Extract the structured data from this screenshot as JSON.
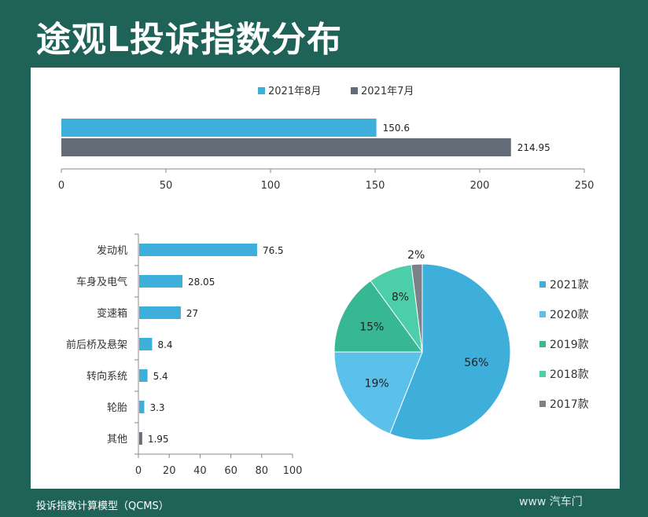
{
  "page": {
    "title": "途观L投诉指数分布",
    "footer": "投诉指数计算模型（QCMS）",
    "watermark": "www 汽车门"
  },
  "chart_data": [
    {
      "type": "bar",
      "orientation": "horizontal",
      "series": [
        {
          "name": "2021年8月",
          "values": [
            150.6
          ],
          "color": "#3eaedb"
        },
        {
          "name": "2021年7月",
          "values": [
            214.95
          ],
          "color": "#646c78"
        }
      ],
      "value_labels": [
        "150.6",
        "214.95"
      ],
      "xlim": [
        0,
        250
      ],
      "ticks": [
        0,
        50,
        100,
        150,
        200,
        250
      ],
      "legend": "top-center"
    },
    {
      "type": "bar",
      "orientation": "horizontal",
      "categories": [
        "发动机",
        "车身及电气",
        "变速箱",
        "前后桥及悬架",
        "转向系统",
        "轮胎",
        "其他"
      ],
      "values": [
        76.5,
        28.05,
        27,
        8.4,
        5.4,
        3.3,
        1.95
      ],
      "value_labels": [
        "76.5",
        "28.05",
        "27",
        "8.4",
        "5.4",
        "3.3",
        "1.95"
      ],
      "colors": [
        "#3eaedb",
        "#3eaedb",
        "#3eaedb",
        "#3eaedb",
        "#3eaedb",
        "#3eaedb",
        "#646c78"
      ],
      "xlim": [
        0,
        100
      ],
      "ticks": [
        0,
        20,
        40,
        60,
        80,
        100
      ]
    },
    {
      "type": "pie",
      "labels": [
        "2021款",
        "2020款",
        "2019款",
        "2018款",
        "2017款"
      ],
      "values": [
        56,
        19,
        15,
        8,
        2
      ],
      "value_labels": [
        "56%",
        "19%",
        "15%",
        "8%",
        "2%"
      ],
      "colors": [
        "#3eaedb",
        "#5bc0ea",
        "#37b892",
        "#4ccfa8",
        "#7b8089"
      ],
      "legend": "right"
    }
  ]
}
